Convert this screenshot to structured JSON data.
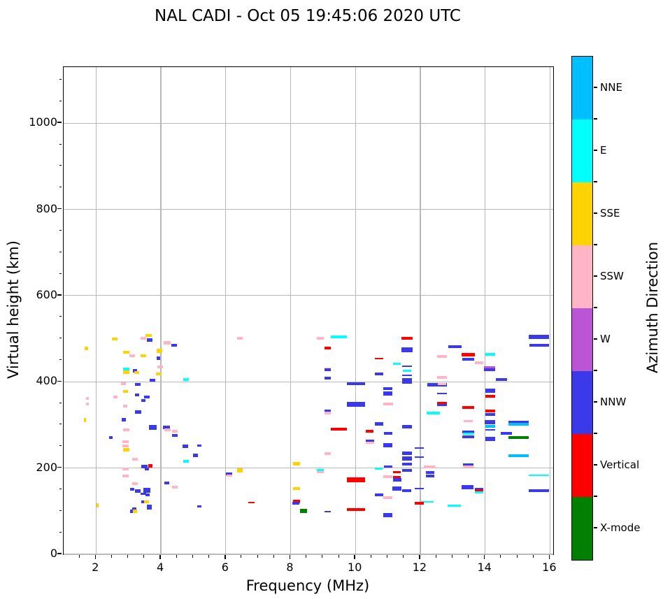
{
  "title": "NAL CADI - Oct 05 19:45:06 2020 UTC",
  "axes": {
    "xlabel": "Frequency (MHz)",
    "ylabel": "Virtual height (km)",
    "xlim": [
      1,
      16.1
    ],
    "ylim": [
      0,
      1130
    ],
    "xticks": [
      2,
      4,
      6,
      8,
      10,
      12,
      14,
      16
    ],
    "yticks": [
      0,
      200,
      400,
      600,
      800,
      1000
    ],
    "x_minor_step": 0.5,
    "y_minor_step": 50,
    "grid": true,
    "grid_color": "#b8b8b8"
  },
  "colorbar": {
    "label": "Azimuth Direction",
    "segments_top_to_bottom": [
      {
        "label": "NNE",
        "color": "#00BFFF"
      },
      {
        "label": "E",
        "color": "#00FFFF"
      },
      {
        "label": "SSE",
        "color": "#FFD300"
      },
      {
        "label": "SSW",
        "color": "#FFB5C5"
      },
      {
        "label": "W",
        "color": "#BB55D6"
      },
      {
        "label": "NNW",
        "color": "#3A3AE8"
      },
      {
        "label": "Vertical",
        "color": "#FF0000"
      },
      {
        "label": "X-mode",
        "color": "#008000"
      }
    ]
  },
  "chart_data": {
    "type": "scatter",
    "title": "NAL CADI - Oct 05 19:45:06 2020 UTC",
    "xlabel": "Frequency (MHz)",
    "ylabel": "Virtual height (km)",
    "xlim": [
      1,
      16.1
    ],
    "ylim": [
      0,
      1130
    ],
    "legend_title": "Azimuth Direction",
    "legend_entries": [
      "NNE",
      "E",
      "SSE",
      "SSW",
      "W",
      "NNW",
      "Vertical",
      "X-mode"
    ],
    "marker": "horizontal-dash",
    "point_format": [
      "freq_MHz",
      "virtual_height_km",
      "direction",
      "width_MHz",
      "thickness_px"
    ],
    "points": [
      [
        1.7,
        478,
        "SSE",
        0.1,
        5
      ],
      [
        2.57,
        499,
        "SSE",
        0.18,
        4
      ],
      [
        3.46,
        501,
        "SSW",
        0.18,
        4
      ],
      [
        3.62,
        508,
        "SSE",
        0.18,
        4
      ],
      [
        3.66,
        497,
        "NNW",
        0.18,
        5
      ],
      [
        4.19,
        490,
        "SSW",
        0.22,
        5
      ],
      [
        4.41,
        485,
        "NNW",
        0.18,
        4
      ],
      [
        2.93,
        469,
        "SSE",
        0.18,
        4
      ],
      [
        3.12,
        461,
        "SSW",
        0.18,
        4
      ],
      [
        3.46,
        460,
        "SSE",
        0.18,
        4
      ],
      [
        3.95,
        471,
        "SSE",
        0.18,
        6
      ],
      [
        3.92,
        455,
        "NNW",
        0.1,
        5
      ],
      [
        2.93,
        430,
        "E",
        0.18,
        4
      ],
      [
        2.93,
        422,
        "SSE",
        0.18,
        5
      ],
      [
        3.2,
        425,
        "NNW",
        0.14,
        5
      ],
      [
        3.25,
        421,
        "SSE",
        0.14,
        4
      ],
      [
        2.84,
        396,
        "SSW",
        0.14,
        4
      ],
      [
        3.29,
        394,
        "NNW",
        0.18,
        4
      ],
      [
        2.91,
        378,
        "SSE",
        0.14,
        4
      ],
      [
        3.27,
        370,
        "NNW",
        0.14,
        4
      ],
      [
        3.57,
        364,
        "NNW",
        0.18,
        4
      ],
      [
        3.46,
        356,
        "NNW",
        0.14,
        4
      ],
      [
        2.6,
        364,
        "SSW",
        0.14,
        4
      ],
      [
        2.9,
        343,
        "SSW",
        0.14,
        4
      ],
      [
        1.74,
        362,
        "SSW",
        0.08,
        4
      ],
      [
        1.74,
        349,
        "SSW",
        0.08,
        4
      ],
      [
        3.74,
        404,
        "NNW",
        0.18,
        4
      ],
      [
        3.97,
        434,
        "SSW",
        0.18,
        4
      ],
      [
        3.94,
        418,
        "SSE",
        0.18,
        4
      ],
      [
        1.66,
        311,
        "SSE",
        0.08,
        6
      ],
      [
        2.85,
        312,
        "NNW",
        0.12,
        5
      ],
      [
        3.3,
        330,
        "NNW",
        0.18,
        5
      ],
      [
        2.93,
        288,
        "SSW",
        0.18,
        4
      ],
      [
        3.75,
        295,
        "NNW",
        0.22,
        7
      ],
      [
        2.46,
        270,
        "NNW",
        0.12,
        4
      ],
      [
        2.91,
        261,
        "SSW",
        0.18,
        4
      ],
      [
        2.91,
        252,
        "SSW",
        0.18,
        4
      ],
      [
        2.93,
        243,
        "SSE",
        0.18,
        5
      ],
      [
        3.2,
        220,
        "SSW",
        0.18,
        4
      ],
      [
        3.49,
        203,
        "NNW",
        0.18,
        5
      ],
      [
        3.67,
        205,
        "Vertical",
        0.12,
        5
      ],
      [
        3.57,
        198,
        "NNW",
        0.14,
        4
      ],
      [
        2.91,
        198,
        "SSW",
        0.18,
        4
      ],
      [
        2.91,
        181,
        "SSW",
        0.18,
        4
      ],
      [
        3.2,
        164,
        "SSW",
        0.18,
        4
      ],
      [
        3.11,
        150,
        "NNW",
        0.12,
        4
      ],
      [
        3.29,
        146,
        "NNW",
        0.16,
        5
      ],
      [
        3.57,
        149,
        "NNW",
        0.22,
        7
      ],
      [
        3.46,
        141,
        "NNW",
        0.16,
        3
      ],
      [
        3.59,
        138,
        "NNW",
        0.12,
        4
      ],
      [
        3.46,
        122,
        "NNW",
        0.14,
        4
      ],
      [
        3.56,
        122,
        "SSE",
        0.14,
        4
      ],
      [
        3.64,
        109,
        "NNW",
        0.16,
        7
      ],
      [
        3.18,
        105,
        "NNW",
        0.12,
        4
      ],
      [
        3.13,
        100,
        "NNW",
        0.14,
        5
      ],
      [
        3.2,
        100,
        "SSE",
        0.12,
        5
      ],
      [
        2.04,
        113,
        "SSE",
        0.06,
        6
      ],
      [
        4.17,
        294,
        "NNW",
        0.22,
        5
      ],
      [
        4.2,
        288,
        "SSW",
        0.18,
        4
      ],
      [
        4.43,
        286,
        "SSW",
        0.18,
        4
      ],
      [
        4.43,
        275,
        "NNW",
        0.18,
        4
      ],
      [
        4.18,
        165,
        "NNW",
        0.16,
        4
      ],
      [
        4.43,
        156,
        "SSW",
        0.18,
        4
      ],
      [
        6.44,
        501,
        "SSW",
        0.16,
        4
      ],
      [
        4.77,
        405,
        "E",
        0.18,
        4
      ],
      [
        4.75,
        250,
        "NNW",
        0.18,
        5
      ],
      [
        5.19,
        252,
        "NNW",
        0.14,
        3
      ],
      [
        5.06,
        230,
        "NNW",
        0.16,
        5
      ],
      [
        4.77,
        216,
        "E",
        0.18,
        4
      ],
      [
        6.1,
        186,
        "NNW",
        0.18,
        4
      ],
      [
        6.11,
        183,
        "SSW",
        0.16,
        3
      ],
      [
        6.44,
        194,
        "SSE",
        0.18,
        6
      ],
      [
        6.79,
        120,
        "Vertical",
        0.2,
        2
      ],
      [
        8.18,
        210,
        "SSE",
        0.22,
        5
      ],
      [
        8.18,
        153,
        "SSE",
        0.22,
        4
      ],
      [
        8.18,
        122,
        "Vertical",
        0.22,
        5
      ],
      [
        8.17,
        118,
        "NNW",
        0.22,
        4
      ],
      [
        8.4,
        100,
        "X-mode",
        0.2,
        6
      ],
      [
        5.19,
        111,
        "NNW",
        0.14,
        3
      ],
      [
        8.91,
        501,
        "SSW",
        0.22,
        4
      ],
      [
        9.48,
        504,
        "E",
        0.5,
        4
      ],
      [
        9.14,
        479,
        "Vertical",
        0.2,
        4
      ],
      [
        10.73,
        454,
        "Vertical",
        0.26,
        2
      ],
      [
        11.6,
        501,
        "Vertical",
        0.35,
        4
      ],
      [
        11.59,
        475,
        "NNW",
        0.35,
        7
      ],
      [
        11.28,
        441,
        "E",
        0.22,
        3
      ],
      [
        11.59,
        436,
        "NNW",
        0.3,
        2
      ],
      [
        11.59,
        426,
        "E",
        0.26,
        3
      ],
      [
        10.72,
        419,
        "NNW",
        0.26,
        4
      ],
      [
        11.59,
        415,
        "NNW",
        0.3,
        2
      ],
      [
        11.59,
        403,
        "NNW",
        0.32,
        6
      ],
      [
        11.59,
        397,
        "NNW",
        0.3,
        2
      ],
      [
        9.14,
        431,
        "SSW",
        0.2,
        3
      ],
      [
        9.14,
        428,
        "NNW",
        0.2,
        4
      ],
      [
        9.14,
        409,
        "NNW",
        0.2,
        4
      ],
      [
        10.02,
        395,
        "NNW",
        0.55,
        4
      ],
      [
        11.0,
        384,
        "NNW",
        0.28,
        4
      ],
      [
        11.0,
        373,
        "NNW",
        0.28,
        6
      ],
      [
        11.0,
        349,
        "SSW",
        0.3,
        4
      ],
      [
        10.02,
        348,
        "NNW",
        0.55,
        7
      ],
      [
        9.14,
        333,
        "NNW",
        0.2,
        4
      ],
      [
        9.14,
        327,
        "SSW",
        0.2,
        4
      ],
      [
        10.72,
        302,
        "NNW",
        0.26,
        5
      ],
      [
        9.48,
        290,
        "Vertical",
        0.5,
        4
      ],
      [
        10.44,
        286,
        "Vertical",
        0.24,
        4
      ],
      [
        11.0,
        281,
        "NNW",
        0.26,
        4
      ],
      [
        11.59,
        296,
        "NNW",
        0.3,
        5
      ],
      [
        10.45,
        262,
        "NNW",
        0.26,
        5
      ],
      [
        10.45,
        258,
        "SSW",
        0.26,
        3
      ],
      [
        11.0,
        253,
        "NNW",
        0.28,
        6
      ],
      [
        11.59,
        234,
        "NNW",
        0.3,
        5
      ],
      [
        11.97,
        246,
        "NNW",
        0.3,
        2
      ],
      [
        11.59,
        222,
        "NNW",
        0.3,
        6
      ],
      [
        11.97,
        225,
        "NNW",
        0.3,
        2
      ],
      [
        11.59,
        209,
        "NNW",
        0.3,
        4
      ],
      [
        9.14,
        234,
        "SSW",
        0.2,
        4
      ],
      [
        8.92,
        195,
        "E",
        0.22,
        4
      ],
      [
        8.92,
        190,
        "SSW",
        0.22,
        3
      ],
      [
        10.72,
        198,
        "E",
        0.24,
        3
      ],
      [
        11.0,
        204,
        "NNW",
        0.26,
        3
      ],
      [
        11.28,
        191,
        "Vertical",
        0.24,
        3
      ],
      [
        11.59,
        195,
        "NNW",
        0.3,
        4
      ],
      [
        11.0,
        180,
        "SSW",
        0.28,
        4
      ],
      [
        11.28,
        178,
        "Vertical",
        0.24,
        4
      ],
      [
        11.28,
        173,
        "NNW",
        0.26,
        5
      ],
      [
        10.02,
        172,
        "Vertical",
        0.55,
        7
      ],
      [
        11.28,
        152,
        "NNW",
        0.28,
        6
      ],
      [
        11.59,
        148,
        "NNW",
        0.28,
        4
      ],
      [
        11.97,
        152,
        "NNW",
        0.28,
        2
      ],
      [
        10.72,
        138,
        "NNW",
        0.26,
        4
      ],
      [
        11.0,
        131,
        "SSW",
        0.28,
        4
      ],
      [
        12.18,
        121,
        "E",
        0.3,
        2
      ],
      [
        11.97,
        118,
        "Vertical",
        0.3,
        4
      ],
      [
        10.02,
        104,
        "Vertical",
        0.55,
        4
      ],
      [
        9.14,
        99,
        "NNW",
        0.18,
        2
      ],
      [
        11.0,
        91,
        "NNW",
        0.28,
        6
      ],
      [
        15.66,
        504,
        "NNW",
        0.62,
        6
      ],
      [
        15.66,
        485,
        "NNW",
        0.6,
        4
      ],
      [
        13.07,
        481,
        "NNW",
        0.4,
        4
      ],
      [
        12.67,
        459,
        "SSW",
        0.3,
        4
      ],
      [
        13.48,
        463,
        "Vertical",
        0.4,
        5
      ],
      [
        13.48,
        452,
        "NNW",
        0.38,
        4
      ],
      [
        13.82,
        445,
        "SSW",
        0.26,
        4
      ],
      [
        14.15,
        463,
        "E",
        0.3,
        4
      ],
      [
        14.14,
        433,
        "W",
        0.34,
        4
      ],
      [
        14.14,
        428,
        "NNW",
        0.34,
        4
      ],
      [
        12.67,
        410,
        "SSW",
        0.3,
        4
      ],
      [
        14.51,
        405,
        "NNW",
        0.34,
        4
      ],
      [
        12.52,
        393,
        "NNW",
        0.6,
        5
      ],
      [
        12.67,
        394,
        "SSW",
        0.26,
        3
      ],
      [
        12.67,
        373,
        "NNW",
        0.3,
        2
      ],
      [
        14.15,
        380,
        "NNW",
        0.3,
        6
      ],
      [
        14.15,
        367,
        "Vertical",
        0.3,
        4
      ],
      [
        12.67,
        350,
        "Vertical",
        0.32,
        5
      ],
      [
        12.67,
        346,
        "NNW",
        0.32,
        3
      ],
      [
        13.48,
        341,
        "Vertical",
        0.36,
        4
      ],
      [
        12.4,
        327,
        "E",
        0.42,
        4
      ],
      [
        14.15,
        333,
        "Vertical",
        0.3,
        4
      ],
      [
        14.15,
        325,
        "NNW",
        0.3,
        4
      ],
      [
        13.48,
        309,
        "SSW",
        0.3,
        3
      ],
      [
        14.15,
        307,
        "NNW",
        0.32,
        6
      ],
      [
        15.03,
        306,
        "NNW",
        0.62,
        4
      ],
      [
        15.03,
        302,
        "NNE",
        0.62,
        4
      ],
      [
        14.15,
        297,
        "NNE",
        0.3,
        4
      ],
      [
        14.15,
        289,
        "NNW",
        0.3,
        2
      ],
      [
        13.48,
        284,
        "NNW",
        0.36,
        4
      ],
      [
        13.48,
        280,
        "E",
        0.34,
        3
      ],
      [
        13.48,
        273,
        "NNW",
        0.36,
        4
      ],
      [
        14.66,
        280,
        "NNW",
        0.34,
        4
      ],
      [
        14.15,
        267,
        "NNW",
        0.3,
        6
      ],
      [
        15.03,
        270,
        "X-mode",
        0.62,
        4
      ],
      [
        15.03,
        228,
        "NNE",
        0.62,
        4
      ],
      [
        13.48,
        207,
        "NNW",
        0.34,
        4
      ],
      [
        13.48,
        204,
        "SSW",
        0.32,
        3
      ],
      [
        12.28,
        202,
        "SSW",
        0.34,
        4
      ],
      [
        12.3,
        190,
        "NNW",
        0.26,
        4
      ],
      [
        12.3,
        182,
        "NNW",
        0.26,
        4
      ],
      [
        15.66,
        184,
        "E",
        0.62,
        2
      ],
      [
        13.46,
        156,
        "NNW",
        0.36,
        6
      ],
      [
        13.82,
        152,
        "NNW",
        0.26,
        3
      ],
      [
        13.82,
        148,
        "Vertical",
        0.26,
        3
      ],
      [
        13.82,
        144,
        "E",
        0.26,
        3
      ],
      [
        15.66,
        147,
        "NNW",
        0.62,
        4
      ],
      [
        12.3,
        121,
        "E",
        0.24,
        2
      ],
      [
        13.05,
        112,
        "E",
        0.4,
        3
      ]
    ]
  }
}
